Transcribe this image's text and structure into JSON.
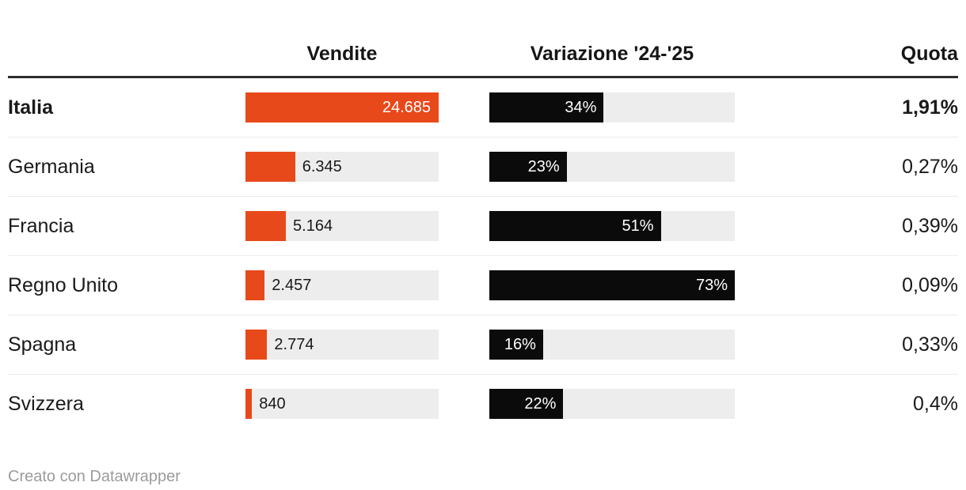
{
  "header": {
    "vendite": "Vendite",
    "variazione": "Variazione '24-'25",
    "quota": "Quota"
  },
  "footer": {
    "credit": "Creato con Datawrapper"
  },
  "colors": {
    "bar_orange": "#e8491b",
    "bar_black": "#0b0b0b",
    "track_gray": "#ededed",
    "header_rule": "#2d2d2d",
    "row_divider": "#ebebeb",
    "text_dark": "#1a1a1a",
    "text_muted": "#9b9b9b",
    "value_on_bar": "#ffffff"
  },
  "chart_data": {
    "type": "table",
    "columns": [
      "",
      "Vendite",
      "Variazione '24-'25",
      "Quota"
    ],
    "vendite_axis_max": 24685,
    "variazione_axis_max": 73,
    "rows": [
      {
        "label": "Italia",
        "vendite": 24685,
        "vendite_label": "24.685",
        "variazione": 34,
        "variazione_label": "34%",
        "quota_label": "1,91%",
        "emphasis": true
      },
      {
        "label": "Germania",
        "vendite": 6345,
        "vendite_label": "6.345",
        "variazione": 23,
        "variazione_label": "23%",
        "quota_label": "0,27%",
        "emphasis": false
      },
      {
        "label": "Francia",
        "vendite": 5164,
        "vendite_label": "5.164",
        "variazione": 51,
        "variazione_label": "51%",
        "quota_label": "0,39%",
        "emphasis": false
      },
      {
        "label": "Regno Unito",
        "vendite": 2457,
        "vendite_label": "2.457",
        "variazione": 73,
        "variazione_label": "73%",
        "quota_label": "0,09%",
        "emphasis": false
      },
      {
        "label": "Spagna",
        "vendite": 2774,
        "vendite_label": "2.774",
        "variazione": 16,
        "variazione_label": "16%",
        "quota_label": "0,33%",
        "emphasis": false
      },
      {
        "label": "Svizzera",
        "vendite": 840,
        "vendite_label": "840",
        "variazione": 22,
        "variazione_label": "22%",
        "quota_label": "0,4%",
        "emphasis": false
      }
    ]
  }
}
